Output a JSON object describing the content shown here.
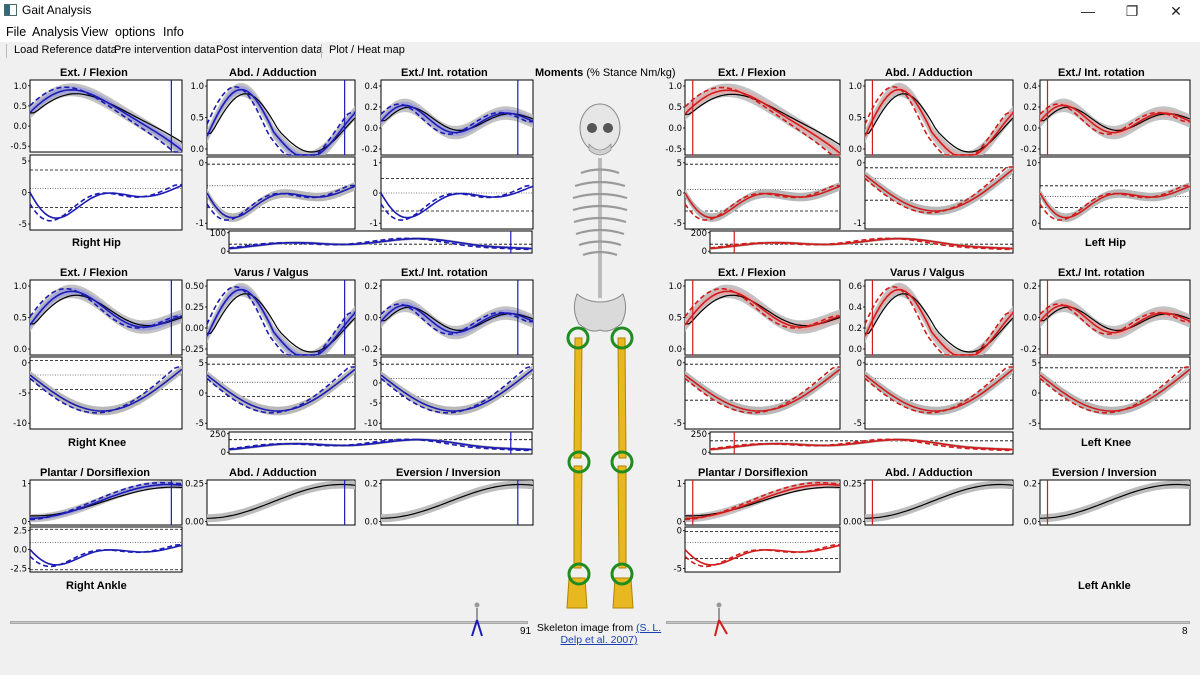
{
  "window": {
    "title": "Gait Analysis",
    "controls": {
      "minimize": "—",
      "maximize": "❐",
      "close": "✕"
    }
  },
  "menu": [
    {
      "label": "File"
    },
    {
      "label": "Analysis"
    },
    {
      "label": "View"
    },
    {
      "label": "options"
    },
    {
      "label": "Info"
    }
  ],
  "toolbar": [
    "Load Reference data",
    "Pre intervention data",
    "Post intervention data",
    "Plot / Heat map"
  ],
  "center": {
    "title_bold": "Moments",
    "title_rest": " (% Stance Nm/kg)",
    "credit_prefix": "Skeleton image from ",
    "credit_link": "(S. L. Delp et al. 2007)"
  },
  "colors": {
    "right": "#1c1cb4",
    "right_fill": "#8a8ae6",
    "left": "#d21c1c",
    "left_fill": "#f0a0a0",
    "reference": "#000000",
    "band": "#bdbdbd",
    "bone": "#e8b820",
    "ring": "#1e8c1e"
  },
  "joints": {
    "right_hip": "Right Hip",
    "right_knee": "Right Knee",
    "right_ankle": "Right Ankle",
    "left_hip": "Left Hip",
    "left_knee": "Left Knee",
    "left_ankle": "Left Ankle"
  },
  "titles": {
    "hip": [
      "Ext. / Flexion",
      "Abd. / Adduction",
      "Ext./ Int. rotation"
    ],
    "knee": [
      "Ext. / Flexion",
      "Varus / Valgus",
      "Ext./ Int. rotation"
    ],
    "ankle": [
      "Plantar / Dorsiflexion",
      "Abd. / Adduction",
      "Eversion / Inversion"
    ]
  },
  "ticks": {
    "r_hip_flex_top": [
      "1.0",
      "0.5",
      "0.0",
      "-0.5"
    ],
    "r_hip_flex_bot": [
      "5",
      "0",
      "-5"
    ],
    "r_hip_abd_top": [
      "1.0",
      "0.5",
      "0.0"
    ],
    "r_hip_abd_bot": [
      "0",
      "-1"
    ],
    "r_hip_rot_top": [
      "0.4",
      "0.2",
      "0.0",
      "-0.2"
    ],
    "r_hip_rot_bot": [
      "1",
      "0",
      "-1"
    ],
    "r_hip_strip": [
      "100",
      "0"
    ],
    "r_knee_flex_top": [
      "1.0",
      "0.5",
      "0.0"
    ],
    "r_knee_flex_bot": [
      "0",
      "-5",
      "-10"
    ],
    "r_knee_var_top": [
      "0.50",
      "0.25",
      "0.00",
      "-0.25"
    ],
    "r_knee_var_bot": [
      "5",
      "0",
      "-5"
    ],
    "r_knee_rot_top": [
      "0.2",
      "0.0",
      "-0.2"
    ],
    "r_knee_rot_bot": [
      "5",
      "0",
      "-5",
      "-10"
    ],
    "r_knee_strip": [
      "250",
      "0"
    ],
    "r_ankle_pl_top": [
      "1",
      "0"
    ],
    "r_ankle_pl_bot": [
      "2.5",
      "0.0",
      "-2.5"
    ],
    "r_ankle_abd_top": [
      "0.25",
      "0.00"
    ],
    "r_ankle_ev_top": [
      "0.2",
      "0.0"
    ],
    "l_hip_flex_top": [
      "1.0",
      "0.5",
      "0.0",
      "-0.5"
    ],
    "l_hip_flex_bot": [
      "5",
      "0",
      "-5"
    ],
    "l_hip_abd_top": [
      "1.0",
      "0.5",
      "0.0"
    ],
    "l_hip_abd_bot": [
      "0",
      "-1"
    ],
    "l_hip_rot_top": [
      "0.4",
      "0.2",
      "0.0",
      "-0.2"
    ],
    "l_hip_rot_bot": [
      "10",
      "0"
    ],
    "l_hip_strip": [
      "200",
      "0"
    ],
    "l_knee_flex_top": [
      "1.0",
      "0.5",
      "0.0"
    ],
    "l_knee_flex_bot": [
      "0",
      "-5"
    ],
    "l_knee_var_top": [
      "0.6",
      "0.4",
      "0.2",
      "0.0"
    ],
    "l_knee_var_bot": [
      "0",
      "-5"
    ],
    "l_knee_rot_top": [
      "0.2",
      "0.0",
      "-0.2"
    ],
    "l_knee_rot_bot": [
      "5",
      "0",
      "-5"
    ],
    "l_knee_strip": [
      "250",
      "0"
    ],
    "l_ankle_pl_top": [
      "1",
      "0"
    ],
    "l_ankle_pl_bot": [
      "0",
      "-5"
    ],
    "l_ankle_abd_top": [
      "0.25",
      "0.00"
    ],
    "l_ankle_ev_top": [
      "0.2",
      "0.0"
    ]
  },
  "sliders": {
    "right": {
      "value": "91"
    },
    "left": {
      "value": "8"
    }
  }
}
